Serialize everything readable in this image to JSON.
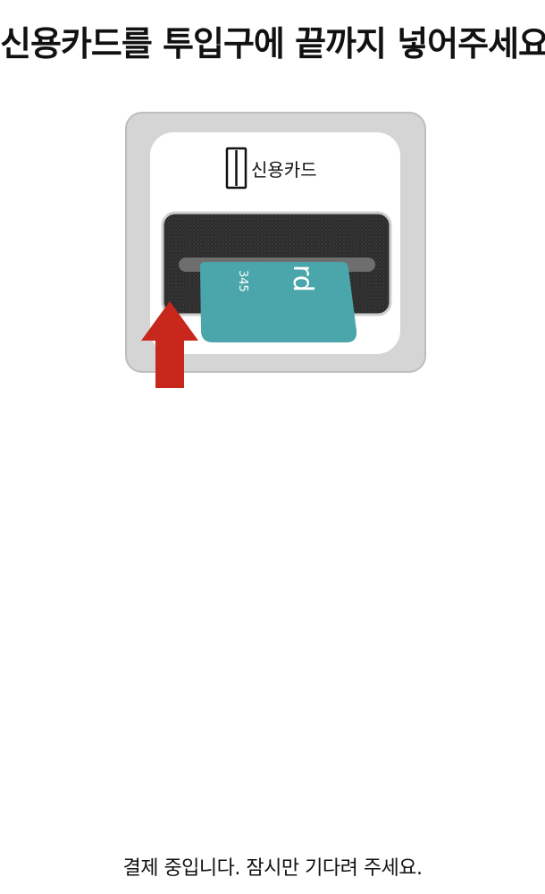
{
  "header": {
    "instruction": "신용카드를 투입구에 끝까지 넣어주세요."
  },
  "reader": {
    "label": "신용카드",
    "card_text_large": "rd",
    "card_text_number": "345"
  },
  "icons": {
    "card_icon": "card-slot-icon",
    "arrow_icon": "arrow-up-icon"
  },
  "colors": {
    "card": "#4aa6aa",
    "arrow": "#c8281c",
    "reader_body": "#d5d5d5"
  },
  "footer": {
    "status_message": "결제 중입니다. 잠시만 기다려 주세요."
  }
}
